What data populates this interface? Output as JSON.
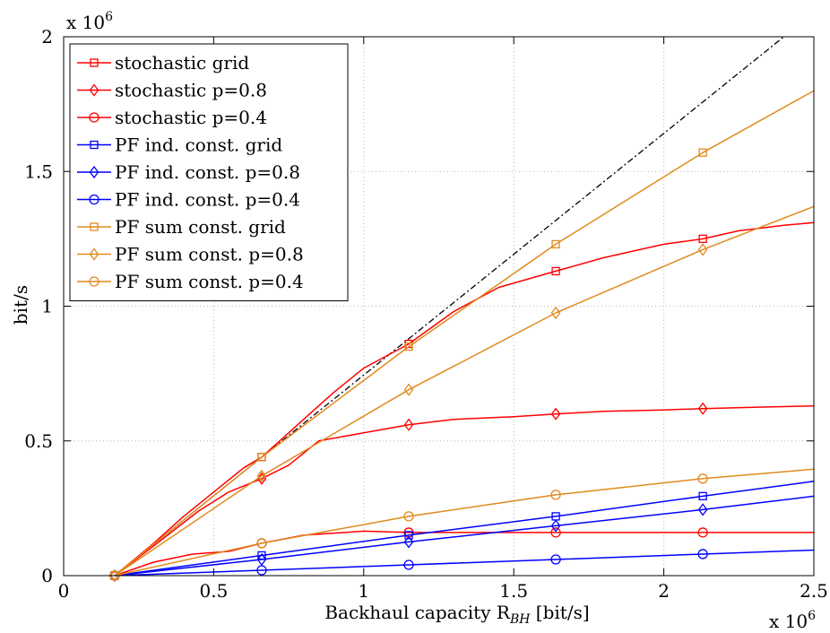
{
  "chart_data": {
    "type": "line",
    "xlabel": "Backhaul capacity R",
    "xlabel_sub": "BH",
    "xlabel_suffix": " [bit/s]",
    "ylabel": "bit/s",
    "x_multiplier": "x 10",
    "x_multiplier_exp": "6",
    "y_multiplier": "x 10",
    "y_multiplier_exp": "6",
    "xlim": [
      0,
      2.5
    ],
    "ylim": [
      0,
      2
    ],
    "xticks": [
      0,
      0.5,
      1,
      1.5,
      2,
      2.5
    ],
    "xtick_labels": [
      "0",
      "0.5",
      "1",
      "1.5",
      "2",
      "2.5"
    ],
    "yticks": [
      0,
      0.5,
      1,
      1.5,
      2
    ],
    "ytick_labels": [
      "0",
      "0.5",
      "1",
      "1.5",
      "2"
    ],
    "grid": true,
    "legend_placement": "top-left",
    "reference_line": {
      "style": "dash-dot",
      "color": "#000000",
      "x": [
        0.17,
        2.4
      ],
      "y": [
        0,
        2.0
      ]
    },
    "series": [
      {
        "name": "stochastic grid",
        "color": "#ff0000",
        "marker": "square",
        "x": [
          0.17,
          0.3,
          0.4,
          0.5,
          0.6,
          0.66,
          0.8,
          0.9,
          1.0,
          1.15,
          1.3,
          1.45,
          1.64,
          1.8,
          2.0,
          2.13,
          2.25,
          2.4,
          2.5
        ],
        "y": [
          0.0,
          0.12,
          0.22,
          0.31,
          0.4,
          0.44,
          0.58,
          0.68,
          0.77,
          0.86,
          0.98,
          1.07,
          1.13,
          1.18,
          1.23,
          1.25,
          1.28,
          1.3,
          1.31
        ],
        "marker_x": [
          0.17,
          0.66,
          1.15,
          1.64,
          2.13
        ],
        "marker_y": [
          0.0,
          0.44,
          0.86,
          1.13,
          1.25
        ]
      },
      {
        "name": "stochastic p=0.8",
        "color": "#ff0000",
        "marker": "diamond",
        "x": [
          0.17,
          0.3,
          0.45,
          0.55,
          0.66,
          0.75,
          0.85,
          1.0,
          1.15,
          1.3,
          1.5,
          1.64,
          1.8,
          2.0,
          2.13,
          2.3,
          2.5
        ],
        "y": [
          0.0,
          0.11,
          0.24,
          0.31,
          0.36,
          0.41,
          0.5,
          0.53,
          0.56,
          0.58,
          0.59,
          0.6,
          0.61,
          0.615,
          0.62,
          0.625,
          0.63
        ],
        "marker_x": [
          0.17,
          0.66,
          1.15,
          1.64,
          2.13
        ],
        "marker_y": [
          0.0,
          0.36,
          0.56,
          0.6,
          0.62
        ]
      },
      {
        "name": "stochastic p=0.4",
        "color": "#ff0000",
        "marker": "circle",
        "x": [
          0.17,
          0.3,
          0.43,
          0.55,
          0.66,
          0.8,
          1.0,
          1.15,
          1.3,
          1.64,
          2.0,
          2.13,
          2.5
        ],
        "y": [
          0.0,
          0.05,
          0.08,
          0.09,
          0.12,
          0.15,
          0.165,
          0.16,
          0.16,
          0.16,
          0.16,
          0.16,
          0.16
        ],
        "marker_x": [
          0.17,
          0.66,
          1.15,
          1.64,
          2.13
        ],
        "marker_y": [
          0.0,
          0.12,
          0.16,
          0.16,
          0.16
        ]
      },
      {
        "name": "PF ind. const. grid",
        "color": "#0000ff",
        "marker": "square",
        "x": [
          0.17,
          0.66,
          1.15,
          1.64,
          2.13,
          2.5
        ],
        "y": [
          0.0,
          0.075,
          0.15,
          0.22,
          0.295,
          0.35
        ],
        "marker_x": [
          0.17,
          0.66,
          1.15,
          1.64,
          2.13
        ],
        "marker_y": [
          0.0,
          0.075,
          0.15,
          0.22,
          0.295
        ]
      },
      {
        "name": "PF ind. const. p=0.8",
        "color": "#0000ff",
        "marker": "diamond",
        "x": [
          0.17,
          0.66,
          1.15,
          1.64,
          2.13,
          2.5
        ],
        "y": [
          0.0,
          0.06,
          0.125,
          0.185,
          0.245,
          0.295
        ],
        "marker_x": [
          0.17,
          0.66,
          1.15,
          1.64,
          2.13
        ],
        "marker_y": [
          0.0,
          0.06,
          0.125,
          0.185,
          0.245
        ]
      },
      {
        "name": "PF ind. const. p=0.4",
        "color": "#0000ff",
        "marker": "circle",
        "x": [
          0.17,
          0.66,
          1.15,
          1.64,
          2.13,
          2.5
        ],
        "y": [
          0.0,
          0.02,
          0.04,
          0.06,
          0.08,
          0.095
        ],
        "marker_x": [
          0.17,
          0.66,
          1.15,
          1.64,
          2.13
        ],
        "marker_y": [
          0.0,
          0.02,
          0.04,
          0.06,
          0.08
        ]
      },
      {
        "name": "PF sum const. grid",
        "color": "#e08a1e",
        "marker": "square",
        "x": [
          0.17,
          0.66,
          1.15,
          1.64,
          2.13,
          2.5
        ],
        "y": [
          0.0,
          0.44,
          0.85,
          1.23,
          1.57,
          1.8
        ],
        "marker_x": [
          0.17,
          0.66,
          1.15,
          1.64,
          2.13
        ],
        "marker_y": [
          0.0,
          0.44,
          0.85,
          1.23,
          1.57
        ]
      },
      {
        "name": "PF sum const. p=0.8",
        "color": "#e08a1e",
        "marker": "diamond",
        "x": [
          0.17,
          0.66,
          1.15,
          1.64,
          2.13,
          2.5
        ],
        "y": [
          0.0,
          0.37,
          0.69,
          0.975,
          1.21,
          1.37
        ],
        "marker_x": [
          0.17,
          0.66,
          1.15,
          1.64,
          2.13
        ],
        "marker_y": [
          0.0,
          0.37,
          0.69,
          0.975,
          1.21
        ]
      },
      {
        "name": "PF sum const. p=0.4",
        "color": "#e08a1e",
        "marker": "circle",
        "x": [
          0.17,
          0.66,
          1.15,
          1.64,
          2.13,
          2.5
        ],
        "y": [
          0.0,
          0.12,
          0.22,
          0.3,
          0.36,
          0.395
        ],
        "marker_x": [
          0.17,
          0.66,
          1.15,
          1.64,
          2.13
        ],
        "marker_y": [
          0.0,
          0.12,
          0.22,
          0.3,
          0.36
        ]
      }
    ]
  }
}
